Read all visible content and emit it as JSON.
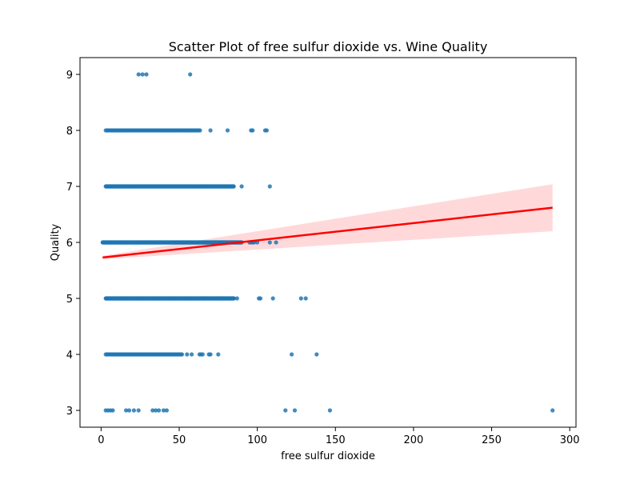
{
  "chart_data": {
    "type": "scatter",
    "title": "Scatter Plot of free sulfur dioxide vs. Wine Quality",
    "xlabel": "free sulfur dioxide",
    "ylabel": "Quality",
    "xlim": [
      -13.5,
      304
    ],
    "ylim": [
      2.7,
      9.3
    ],
    "xticks": [
      0,
      50,
      100,
      150,
      200,
      250,
      300
    ],
    "yticks": [
      3,
      4,
      5,
      6,
      7,
      8,
      9
    ],
    "xtick_labels": [
      "0",
      "50",
      "100",
      "150",
      "200",
      "250",
      "300"
    ],
    "ytick_labels": [
      "3",
      "4",
      "5",
      "6",
      "7",
      "8",
      "9"
    ],
    "grid": false,
    "point_color": "#1f77b4",
    "series": [
      {
        "x_ranges": [
          {
            "y": 9,
            "from": 24,
            "to": 31,
            "step": 2.5
          },
          {
            "y": 8,
            "from": 3,
            "to": 64,
            "step": 0.9
          },
          {
            "y": 7,
            "from": 3,
            "to": 85,
            "step": 0.3
          },
          {
            "y": 6,
            "from": 1,
            "to": 90,
            "step": 0.25
          },
          {
            "y": 5,
            "from": 3,
            "to": 85,
            "step": 0.25
          },
          {
            "y": 4,
            "from": 3,
            "to": 52,
            "step": 0.8
          },
          {
            "y": 3,
            "from": 3,
            "to": 8,
            "step": 1.5
          }
        ],
        "points": [
          [
            57,
            9
          ],
          [
            70,
            8
          ],
          [
            81,
            8
          ],
          [
            96,
            8
          ],
          [
            97,
            8
          ],
          [
            105,
            8
          ],
          [
            106,
            8
          ],
          [
            90,
            7
          ],
          [
            108,
            7
          ],
          [
            95,
            6
          ],
          [
            96,
            6
          ],
          [
            97,
            6
          ],
          [
            98,
            6
          ],
          [
            100,
            6
          ],
          [
            108,
            6
          ],
          [
            112,
            6
          ],
          [
            87,
            5
          ],
          [
            101,
            5
          ],
          [
            102,
            5
          ],
          [
            110,
            5
          ],
          [
            128,
            5
          ],
          [
            131,
            5
          ],
          [
            55,
            4
          ],
          [
            58,
            4
          ],
          [
            63,
            4
          ],
          [
            64,
            4
          ],
          [
            65,
            4
          ],
          [
            69,
            4
          ],
          [
            70,
            4
          ],
          [
            75,
            4
          ],
          [
            122,
            4
          ],
          [
            138,
            4
          ],
          [
            16,
            3
          ],
          [
            18,
            3
          ],
          [
            21,
            3
          ],
          [
            24,
            3
          ],
          [
            33,
            3
          ],
          [
            35,
            3
          ],
          [
            37,
            3
          ],
          [
            40,
            3
          ],
          [
            42,
            3
          ],
          [
            118,
            3
          ],
          [
            124,
            3
          ],
          [
            146.5,
            3
          ],
          [
            289,
            3
          ]
        ]
      }
    ],
    "regression": {
      "color": "#ff0000",
      "x": [
        1,
        289
      ],
      "y": [
        5.73,
        6.62
      ],
      "ci_upper": [
        5.76,
        7.04
      ],
      "ci_lower": [
        5.7,
        6.2
      ],
      "ci_fill": "#ffcccc"
    }
  }
}
